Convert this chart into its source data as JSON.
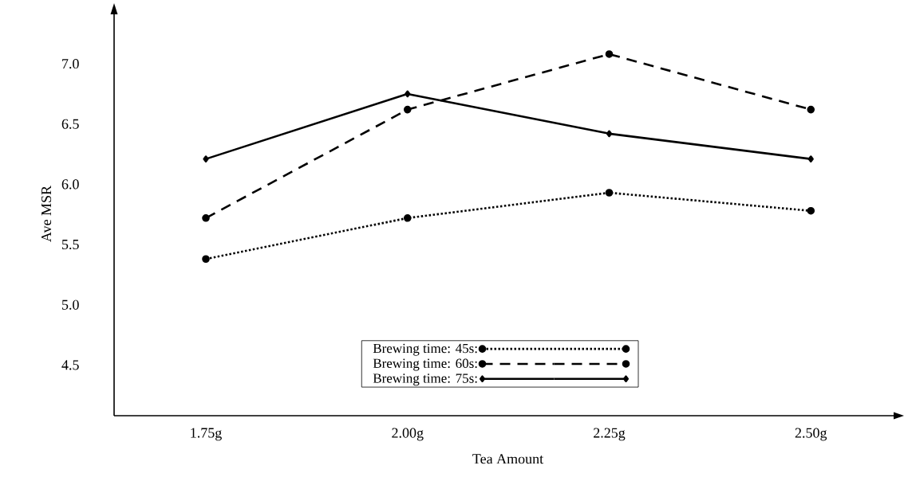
{
  "chart_data": {
    "type": "line",
    "xlabel": "Tea Amount",
    "ylabel": "Ave MSR",
    "categories": [
      "1.75g",
      "2.00g",
      "2.25g",
      "2.50g"
    ],
    "ylim": [
      4.08,
      7.43
    ],
    "yticks": [
      {
        "value": 4.5,
        "label": "4.5"
      },
      {
        "value": 5.0,
        "label": "5.0"
      },
      {
        "value": 5.5,
        "label": "5.5"
      },
      {
        "value": 6.0,
        "label": "6.0"
      },
      {
        "value": 6.5,
        "label": "6.5"
      },
      {
        "value": 7.0,
        "label": "7.0"
      }
    ],
    "grid": false,
    "legend": "bottom",
    "series": [
      {
        "name": "Brewing time: 45s:",
        "color": "#000000",
        "values": [
          5.38,
          5.72,
          5.93,
          5.78
        ],
        "marker": "circle",
        "line_style": "dotted"
      },
      {
        "name": "Brewing time: 60s:",
        "color": "#000000",
        "values": [
          5.72,
          6.62,
          7.08,
          6.62
        ],
        "marker": "circle",
        "line_style": "dashed"
      },
      {
        "name": "Brewing time: 75s:",
        "color": "#000000",
        "values": [
          6.21,
          6.75,
          6.42,
          6.21
        ],
        "marker": "diamond",
        "line_style": "solid"
      }
    ]
  }
}
